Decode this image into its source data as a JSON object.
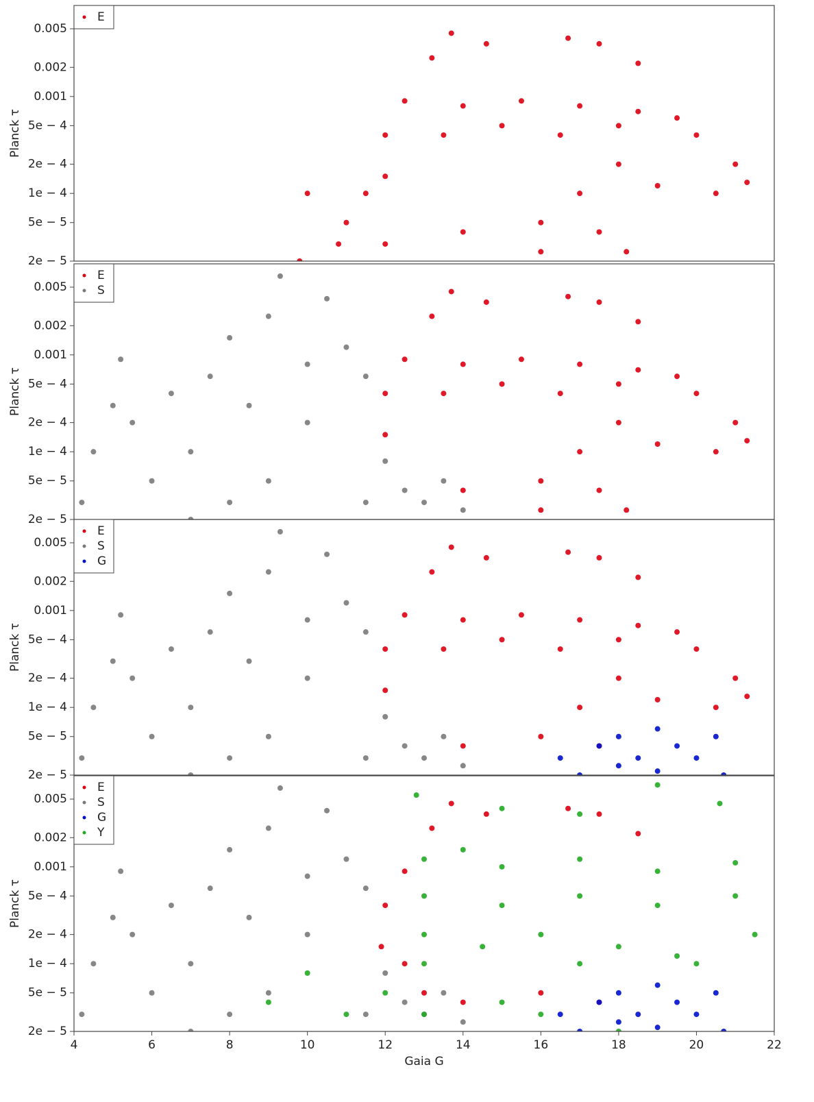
{
  "chart_data": [
    {
      "type": "scatter",
      "ylabel": "Planck τ",
      "xlim": [
        4,
        22
      ],
      "ylim": [
        2e-05,
        0.0087
      ],
      "log_y": true,
      "legend": "upper left",
      "yticks": [
        0.005,
        0.002,
        0.001,
        {
          "value": 0.0005,
          "label": "5e − 4"
        },
        {
          "value": 0.0002,
          "label": "2e − 4"
        },
        {
          "value": 0.0001,
          "label": "1e − 4"
        },
        {
          "value": 5e-05,
          "label": "5e − 5"
        },
        {
          "value": 2e-05,
          "label": "2e − 5"
        }
      ],
      "series": [
        {
          "name": "E",
          "color": "#dd0011",
          "x": [
            13.7,
            14.6,
            16.7,
            17.5,
            13.2,
            18.5,
            12.5,
            14,
            15.5,
            17,
            18.5,
            19.5,
            12,
            13.5,
            15,
            16.5,
            18,
            20,
            21,
            21.3,
            20.5,
            19,
            18,
            17,
            12,
            11.5,
            11,
            10.8,
            12,
            14,
            16,
            17.5,
            18.2,
            16,
            10,
            9.8
          ],
          "values": [
            0.0045,
            0.0035,
            0.004,
            0.0035,
            0.0025,
            0.0022,
            0.0009,
            0.0008,
            0.0009,
            0.0008,
            0.0007,
            0.0006,
            0.0004,
            0.0004,
            0.0005,
            0.0004,
            0.0005,
            0.0004,
            0.0002,
            0.00013,
            0.0001,
            0.00012,
            0.0002,
            0.0001,
            0.00015,
            0.0001,
            5e-05,
            3e-05,
            3e-05,
            4e-05,
            5e-05,
            4e-05,
            2.5e-05,
            2.5e-05,
            0.0001,
            2e-05
          ]
        }
      ]
    },
    {
      "type": "scatter",
      "ylabel": "Planck τ",
      "xlim": [
        4,
        22
      ],
      "ylim": [
        2e-05,
        0.0087
      ],
      "log_y": true,
      "legend": "upper left",
      "yticks": [
        0.005,
        0.002,
        0.001,
        {
          "value": 0.0005,
          "label": "5e − 4"
        },
        {
          "value": 0.0002,
          "label": "2e − 4"
        },
        {
          "value": 0.0001,
          "label": "1e − 4"
        },
        {
          "value": 5e-05,
          "label": "5e − 5"
        },
        {
          "value": 2e-05,
          "label": "2e − 5"
        }
      ],
      "series": [
        {
          "name": "E",
          "color": "#dd0011",
          "x": [
            13.7,
            14.6,
            16.7,
            17.5,
            13.2,
            18.5,
            12.5,
            14,
            15.5,
            17,
            18.5,
            19.5,
            12,
            13.5,
            15,
            16.5,
            18,
            20,
            21,
            21.3,
            20.5,
            19,
            18,
            17,
            12,
            14,
            16,
            17.5,
            18.2,
            16
          ],
          "values": [
            0.0045,
            0.0035,
            0.004,
            0.0035,
            0.0025,
            0.0022,
            0.0009,
            0.0008,
            0.0009,
            0.0008,
            0.0007,
            0.0006,
            0.0004,
            0.0004,
            0.0005,
            0.0004,
            0.0005,
            0.0004,
            0.0002,
            0.00013,
            0.0001,
            0.00012,
            0.0002,
            0.0001,
            0.00015,
            4e-05,
            5e-05,
            4e-05,
            2.5e-05,
            2.5e-05
          ]
        },
        {
          "name": "S",
          "color": "#7a7a7a",
          "x": [
            4.2,
            4.5,
            5,
            5.5,
            5.2,
            6,
            6.5,
            7,
            7.5,
            8,
            8.5,
            9,
            9.3,
            9,
            10,
            10.5,
            10,
            11,
            11.5,
            11.5,
            12,
            12.5,
            13,
            13.5,
            14,
            7,
            8
          ],
          "values": [
            3e-05,
            0.0001,
            0.0003,
            0.0002,
            0.0009,
            5e-05,
            0.0004,
            0.0001,
            0.0006,
            0.0015,
            0.0003,
            0.0025,
            0.0065,
            5e-05,
            0.0008,
            0.0038,
            0.0002,
            0.0012,
            0.0006,
            3e-05,
            8e-05,
            4e-05,
            3e-05,
            5e-05,
            2.5e-05,
            2e-05,
            3e-05
          ]
        }
      ]
    },
    {
      "type": "scatter",
      "ylabel": "Planck τ",
      "xlim": [
        4,
        22
      ],
      "ylim": [
        2e-05,
        0.0087
      ],
      "log_y": true,
      "legend": "upper left",
      "yticks": [
        0.005,
        0.002,
        0.001,
        {
          "value": 0.0005,
          "label": "5e − 4"
        },
        {
          "value": 0.0002,
          "label": "2e − 4"
        },
        {
          "value": 0.0001,
          "label": "1e − 4"
        },
        {
          "value": 5e-05,
          "label": "5e − 5"
        },
        {
          "value": 2e-05,
          "label": "2e − 5"
        }
      ],
      "series": [
        {
          "name": "E",
          "color": "#dd0011",
          "x": [
            13.7,
            14.6,
            16.7,
            17.5,
            13.2,
            18.5,
            12.5,
            14,
            15.5,
            17,
            18.5,
            19.5,
            12,
            13.5,
            15,
            16.5,
            18,
            20,
            21,
            21.3,
            20.5,
            19,
            18,
            17,
            12,
            14,
            16,
            17.5
          ],
          "values": [
            0.0045,
            0.0035,
            0.004,
            0.0035,
            0.0025,
            0.0022,
            0.0009,
            0.0008,
            0.0009,
            0.0008,
            0.0007,
            0.0006,
            0.0004,
            0.0004,
            0.0005,
            0.0004,
            0.0005,
            0.0004,
            0.0002,
            0.00013,
            0.0001,
            0.00012,
            0.0002,
            0.0001,
            0.00015,
            4e-05,
            5e-05,
            4e-05
          ]
        },
        {
          "name": "S",
          "color": "#7a7a7a",
          "x": [
            4.2,
            4.5,
            5,
            5.5,
            5.2,
            6,
            6.5,
            7,
            7.5,
            8,
            8.5,
            9,
            9.3,
            9,
            10,
            10.5,
            10,
            11,
            11.5,
            11.5,
            12,
            12.5,
            13,
            13.5,
            14,
            7,
            8
          ],
          "values": [
            3e-05,
            0.0001,
            0.0003,
            0.0002,
            0.0009,
            5e-05,
            0.0004,
            0.0001,
            0.0006,
            0.0015,
            0.0003,
            0.0025,
            0.0065,
            5e-05,
            0.0008,
            0.0038,
            0.0002,
            0.0012,
            0.0006,
            3e-05,
            8e-05,
            4e-05,
            3e-05,
            5e-05,
            2.5e-05,
            2e-05,
            3e-05
          ]
        },
        {
          "name": "G",
          "color": "#0011cc",
          "x": [
            16.5,
            17,
            17.5,
            18,
            18.5,
            19,
            19.5,
            20,
            20.5,
            20.7,
            19,
            18
          ],
          "values": [
            3e-05,
            2e-05,
            4e-05,
            5e-05,
            3e-05,
            6e-05,
            4e-05,
            3e-05,
            5e-05,
            2e-05,
            2.2e-05,
            2.5e-05
          ]
        }
      ]
    },
    {
      "type": "scatter",
      "ylabel": "Planck τ",
      "xlabel": "Gaia G",
      "xlim": [
        4,
        22
      ],
      "ylim": [
        2e-05,
        0.0087
      ],
      "log_y": true,
      "legend": "upper left",
      "xticks": [
        4,
        6,
        8,
        10,
        12,
        14,
        16,
        18,
        20,
        22
      ],
      "yticks": [
        0.005,
        0.002,
        0.001,
        {
          "value": 0.0005,
          "label": "5e − 4"
        },
        {
          "value": 0.0002,
          "label": "2e − 4"
        },
        {
          "value": 0.0001,
          "label": "1e − 4"
        },
        {
          "value": 5e-05,
          "label": "5e − 5"
        },
        {
          "value": 2e-05,
          "label": "2e − 5"
        }
      ],
      "series": [
        {
          "name": "E",
          "color": "#dd0011",
          "x": [
            13.7,
            14.6,
            16.7,
            17.5,
            13.2,
            18.5,
            12.5,
            12,
            11.9,
            12.5,
            13,
            14,
            16,
            17.5
          ],
          "values": [
            0.0045,
            0.0035,
            0.004,
            0.0035,
            0.0025,
            0.0022,
            0.0009,
            0.0004,
            0.00015,
            0.0001,
            5e-05,
            4e-05,
            5e-05,
            4e-05
          ]
        },
        {
          "name": "S",
          "color": "#7a7a7a",
          "x": [
            4.2,
            4.5,
            5,
            5.5,
            5.2,
            6,
            6.5,
            7,
            7.5,
            8,
            8.5,
            9,
            9.3,
            9,
            10,
            10.5,
            10,
            11,
            11.5,
            11.5,
            12,
            12.5,
            13,
            13.5,
            14,
            7,
            8
          ],
          "values": [
            3e-05,
            0.0001,
            0.0003,
            0.0002,
            0.0009,
            5e-05,
            0.0004,
            0.0001,
            0.0006,
            0.0015,
            0.0003,
            0.0025,
            0.0065,
            5e-05,
            0.0008,
            0.0038,
            0.0002,
            0.0012,
            0.0006,
            3e-05,
            8e-05,
            4e-05,
            3e-05,
            5e-05,
            2.5e-05,
            2e-05,
            3e-05
          ]
        },
        {
          "name": "G",
          "color": "#0011cc",
          "x": [
            16.5,
            17,
            17.5,
            18,
            18.5,
            19,
            19.5,
            20,
            20.5,
            20.7,
            19,
            18
          ],
          "values": [
            3e-05,
            2e-05,
            4e-05,
            5e-05,
            3e-05,
            6e-05,
            4e-05,
            3e-05,
            5e-05,
            2e-05,
            2.2e-05,
            2.5e-05
          ]
        },
        {
          "name": "Y",
          "color": "#22aa22",
          "x": [
            12.8,
            19,
            20.6,
            15,
            17,
            13,
            14,
            15,
            17,
            19,
            21,
            13,
            15,
            17,
            19,
            21,
            13,
            14.5,
            16,
            18,
            19.5,
            21.5,
            13,
            17,
            20,
            9,
            10,
            11,
            12,
            13,
            15,
            16,
            18
          ],
          "values": [
            0.0055,
            0.007,
            0.0045,
            0.004,
            0.0035,
            0.0012,
            0.0015,
            0.001,
            0.0012,
            0.0009,
            0.0011,
            0.0005,
            0.0004,
            0.0005,
            0.0004,
            0.0005,
            0.0002,
            0.00015,
            0.0002,
            0.00015,
            0.00012,
            0.0002,
            0.0001,
            0.0001,
            0.0001,
            4e-05,
            8e-05,
            3e-05,
            5e-05,
            3e-05,
            4e-05,
            3e-05,
            2e-05
          ]
        }
      ]
    }
  ]
}
